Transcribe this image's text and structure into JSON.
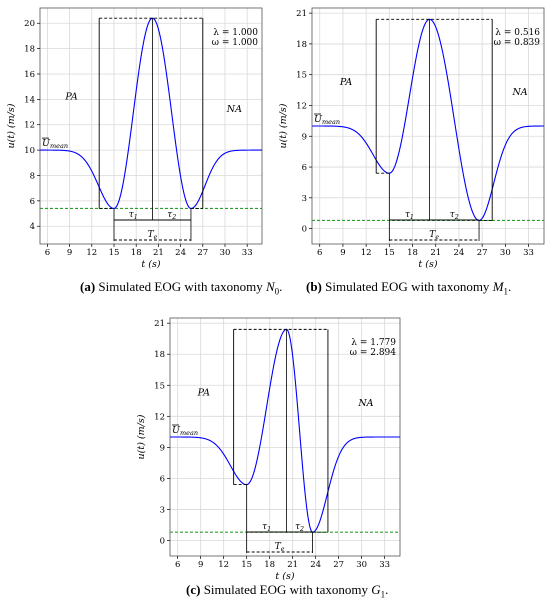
{
  "chart_data": [
    {
      "type": "line",
      "panel_id": "a",
      "xlabel": "t (s)",
      "ylabel": "u(t) (m/s)",
      "xticks": [
        6,
        9,
        12,
        15,
        18,
        21,
        24,
        27,
        30,
        33
      ],
      "yticks": [
        4,
        6,
        8,
        10,
        12,
        14,
        16,
        18,
        20
      ],
      "xlim": [
        5,
        35
      ],
      "ylim": [
        2.6,
        21.2
      ],
      "grid": true,
      "mean_label": "U̅mean",
      "mean_value": 10.0,
      "peak": {
        "t": 20.2,
        "u": 20.4
      },
      "min1": {
        "t": 15.0,
        "u": 5.4
      },
      "min2": {
        "t": 25.4,
        "u": 5.4
      },
      "green_line": 5.4,
      "gust_start": 13.0,
      "gust_end": 27.0,
      "annotations": {
        "lambda": "λ = 1.000",
        "omega": "ω = 1.000",
        "pa": "PA",
        "na": "NA",
        "tau1": "τ1",
        "tau2": "τ2",
        "te": "Te"
      },
      "series": [
        {
          "color": "#0000ff"
        }
      ],
      "caption": {
        "label": "(a)",
        "text": "Simulated EOG with taxonomy",
        "symbol": "N",
        "sub": "0"
      }
    },
    {
      "type": "line",
      "panel_id": "b",
      "xlabel": "t (s)",
      "ylabel": "u(t) (m/s)",
      "xticks": [
        6,
        9,
        12,
        15,
        18,
        21,
        24,
        27,
        30,
        33
      ],
      "yticks": [
        0,
        3,
        6,
        9,
        12,
        15,
        18,
        21
      ],
      "xlim": [
        5,
        35
      ],
      "ylim": [
        -1.5,
        21.5
      ],
      "grid": true,
      "mean_label": "U̅mean",
      "mean_value": 10.0,
      "peak": {
        "t": 20.2,
        "u": 20.4
      },
      "min1": {
        "t": 15.0,
        "u": 5.4
      },
      "min2": {
        "t": 26.6,
        "u": 0.8
      },
      "green_line": 0.8,
      "gust_start": 13.3,
      "gust_end": 28.3,
      "annotations": {
        "lambda": "λ = 0.516",
        "omega": "ω = 0.839",
        "pa": "PA",
        "na": "NA",
        "tau1": "τ1",
        "tau2": "τ2",
        "te": "Te"
      },
      "series": [
        {
          "color": "#0000ff"
        }
      ],
      "caption": {
        "label": "(b)",
        "text": "Simulated EOG with taxonomy",
        "symbol": "M",
        "sub": "1"
      }
    },
    {
      "type": "line",
      "panel_id": "c",
      "xlabel": "t (s)",
      "ylabel": "u(t) (m/s)",
      "xticks": [
        6,
        9,
        12,
        15,
        18,
        21,
        24,
        27,
        30,
        33
      ],
      "yticks": [
        0,
        3,
        6,
        9,
        12,
        15,
        18,
        21
      ],
      "xlim": [
        5,
        35
      ],
      "ylim": [
        -1.5,
        21.5
      ],
      "grid": true,
      "mean_label": "U̅mean",
      "mean_value": 10.0,
      "peak": {
        "t": 20.2,
        "u": 20.4
      },
      "min1": {
        "t": 15.0,
        "u": 5.4
      },
      "min2": {
        "t": 23.6,
        "u": 0.8
      },
      "green_line": 0.8,
      "gust_start": 13.3,
      "gust_end": 25.6,
      "annotations": {
        "lambda": "λ = 1.779",
        "omega": "ω = 2.894",
        "pa": "PA",
        "na": "NA",
        "tau1": "τ1",
        "tau2": "τ2",
        "te": "Te"
      },
      "series": [
        {
          "color": "#0000ff"
        }
      ],
      "caption": {
        "label": "(c)",
        "text": "Simulated EOG with taxonomy",
        "symbol": "G",
        "sub": "1"
      }
    }
  ],
  "colors": {
    "curve": "#0000ff",
    "green_dashed": "#2ca02c",
    "grid": "#d9d9d9",
    "frame": "#000000"
  }
}
